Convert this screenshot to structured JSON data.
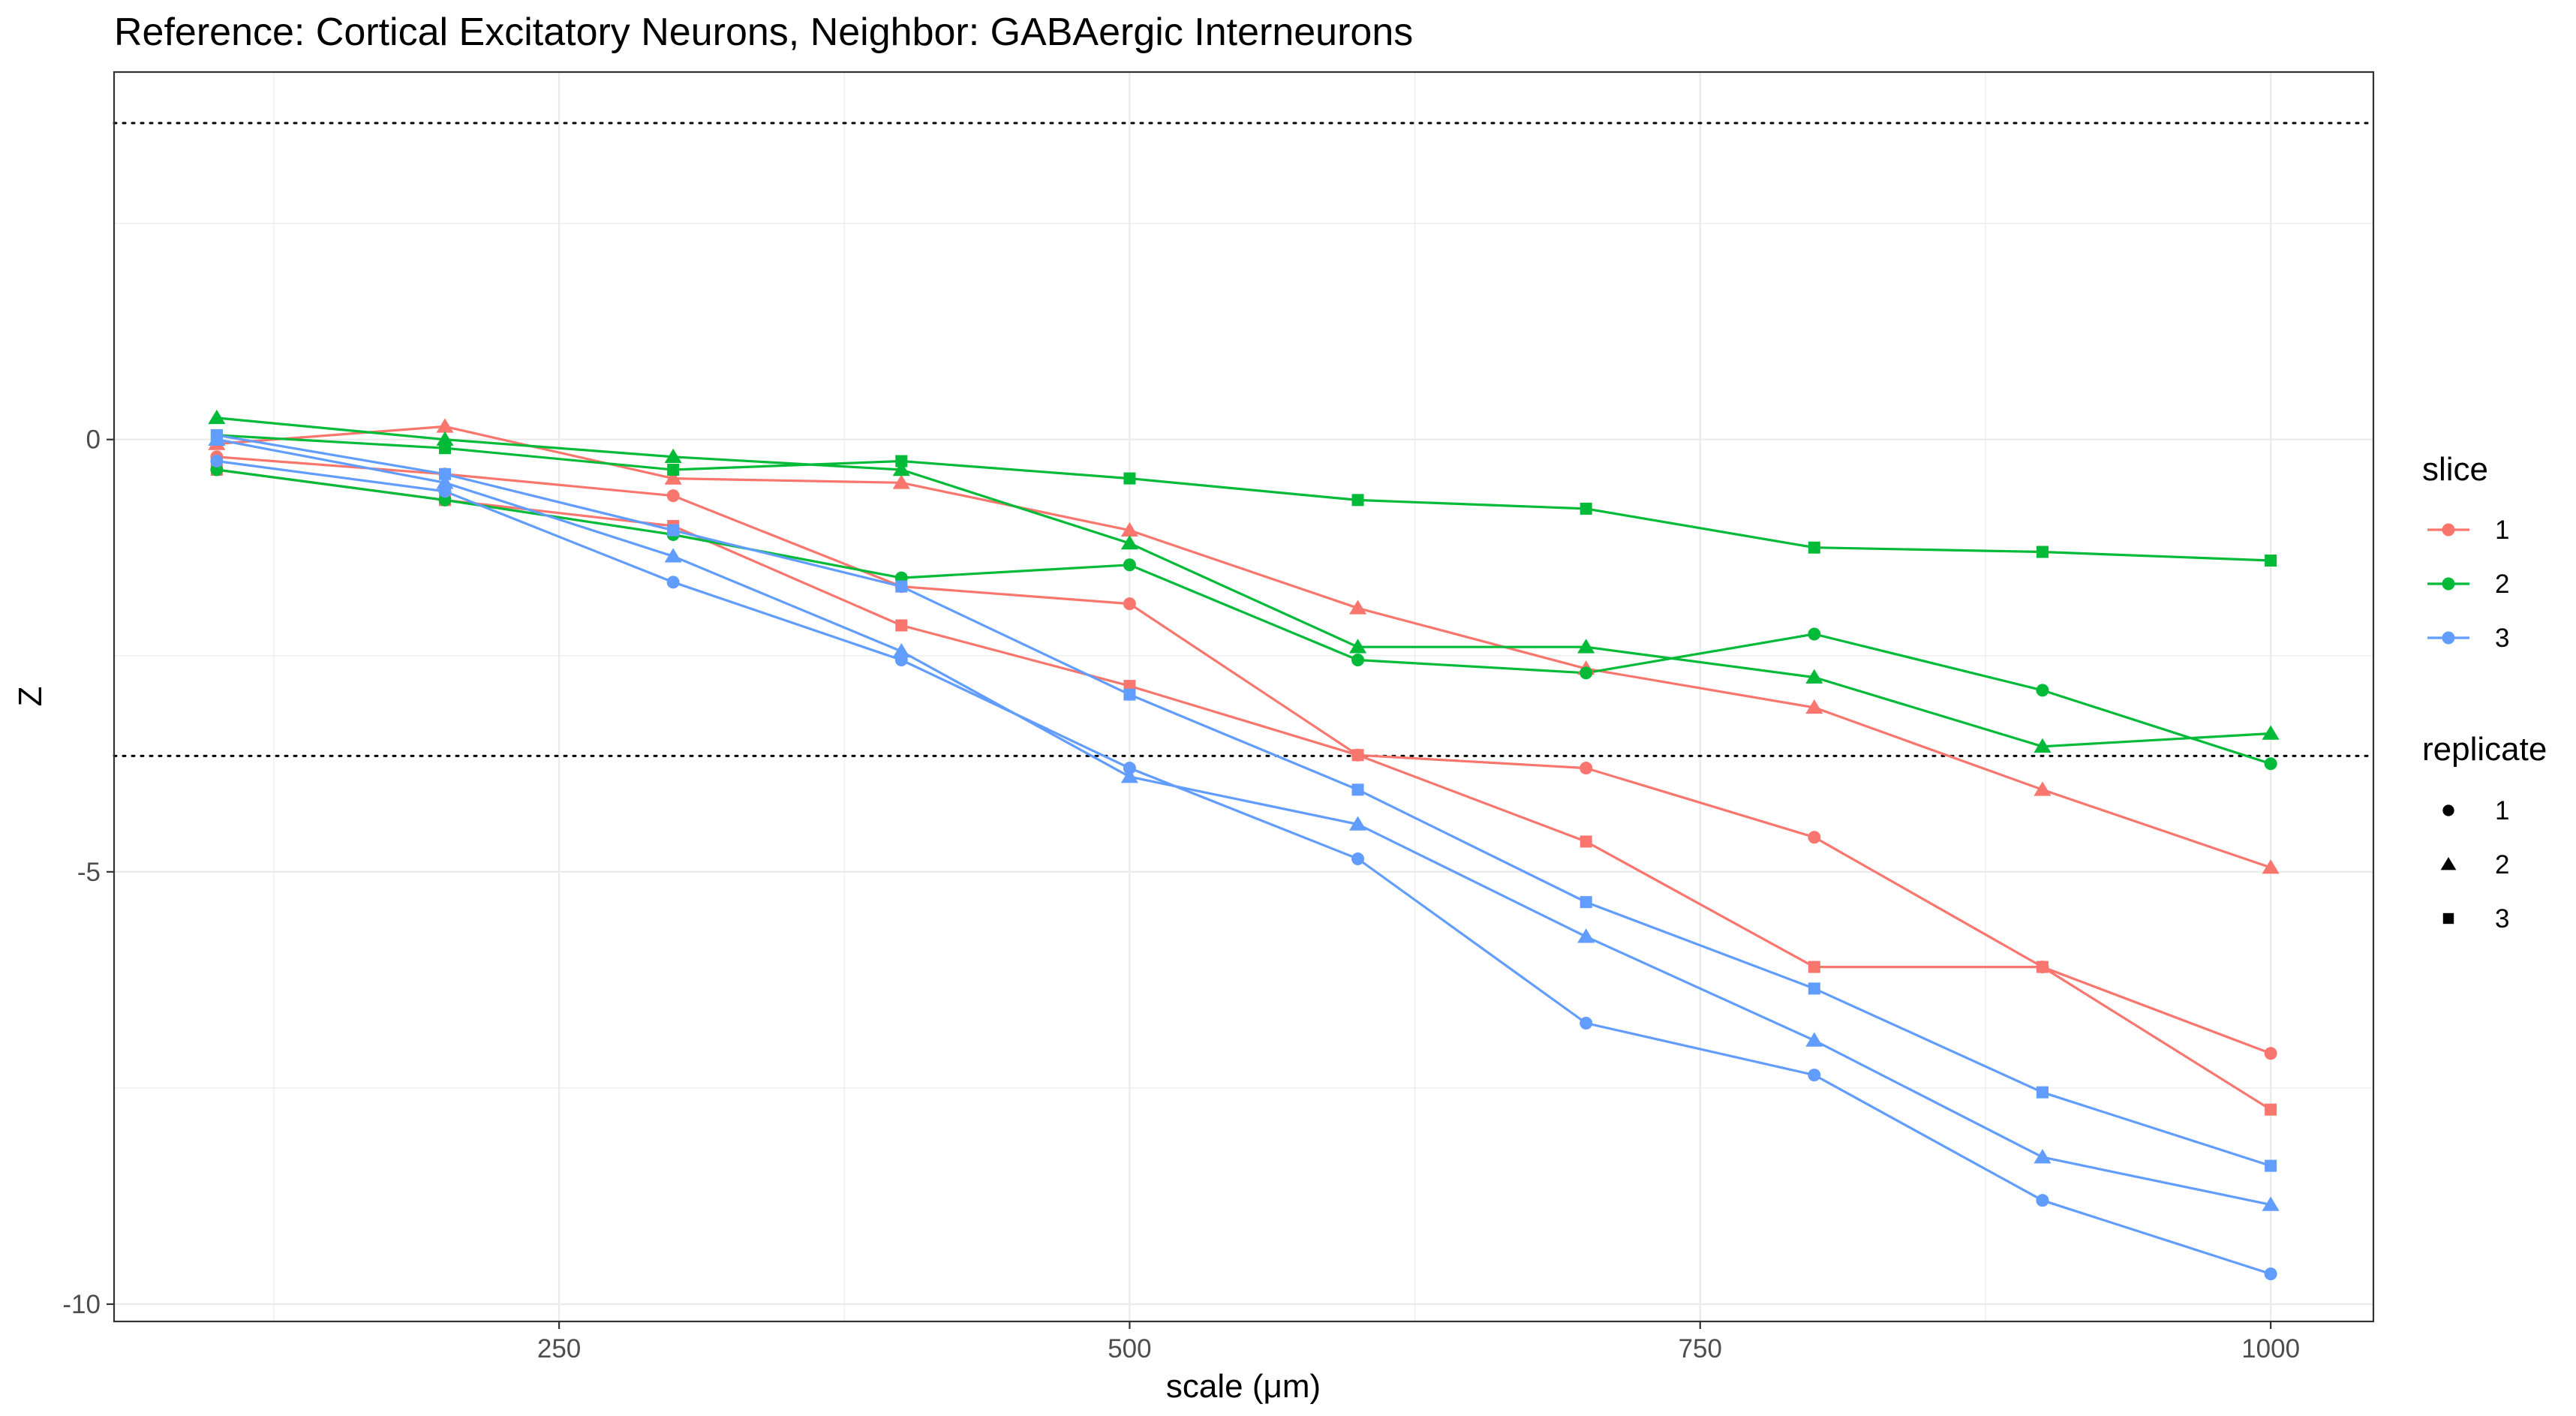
{
  "chart_data": {
    "type": "line",
    "title": "Reference: Cortical Excitatory Neurons, Neighbor: GABAergic Interneurons",
    "xlabel": "scale (μm)",
    "ylabel": "Z",
    "x": [
      100,
      200,
      300,
      400,
      500,
      600,
      700,
      800,
      900,
      1000
    ],
    "xlim": [
      55,
      1045
    ],
    "ylim": [
      -10.2,
      4.25
    ],
    "xticks": [
      250,
      500,
      750,
      1000
    ],
    "yticks": [
      0,
      -5,
      -10
    ],
    "grid": true,
    "reference_lines": [
      3.66,
      -3.66
    ],
    "legend_position": "right",
    "legend": {
      "color_title": "slice",
      "shape_title": "replicate",
      "slices": [
        {
          "label": "1",
          "color": "#F8766D"
        },
        {
          "label": "2",
          "color": "#00BA38"
        },
        {
          "label": "3",
          "color": "#619CFF"
        }
      ],
      "replicates": [
        {
          "label": "1",
          "shape": "circle"
        },
        {
          "label": "2",
          "shape": "triangle"
        },
        {
          "label": "3",
          "shape": "square"
        }
      ]
    },
    "series": [
      {
        "slice": "1",
        "replicate": "1",
        "values": [
          -0.2,
          -0.4,
          -0.65,
          -1.7,
          -1.9,
          -3.65,
          -3.8,
          -4.6,
          -6.1,
          -7.1
        ]
      },
      {
        "slice": "1",
        "replicate": "2",
        "values": [
          -0.05,
          0.15,
          -0.45,
          -0.5,
          -1.05,
          -1.95,
          -2.65,
          -3.1,
          -4.05,
          -4.95
        ]
      },
      {
        "slice": "1",
        "replicate": "3",
        "values": [
          -0.35,
          -0.7,
          -1.0,
          -2.15,
          -2.85,
          -3.65,
          -4.65,
          -6.1,
          -6.1,
          -7.75
        ]
      },
      {
        "slice": "2",
        "replicate": "1",
        "values": [
          -0.35,
          -0.7,
          -1.1,
          -1.6,
          -1.45,
          -2.55,
          -2.7,
          -2.25,
          -2.9,
          -3.75
        ]
      },
      {
        "slice": "2",
        "replicate": "2",
        "values": [
          0.25,
          0.0,
          -0.2,
          -0.35,
          -1.2,
          -2.4,
          -2.4,
          -2.75,
          -3.55,
          -3.4
        ]
      },
      {
        "slice": "2",
        "replicate": "3",
        "values": [
          0.05,
          -0.1,
          -0.35,
          -0.25,
          -0.45,
          -0.7,
          -0.8,
          -1.25,
          -1.3,
          -1.4
        ]
      },
      {
        "slice": "3",
        "replicate": "1",
        "values": [
          -0.25,
          -0.6,
          -1.65,
          -2.55,
          -3.8,
          -4.85,
          -6.75,
          -7.35,
          -8.8,
          -9.65
        ]
      },
      {
        "slice": "3",
        "replicate": "2",
        "values": [
          0.0,
          -0.5,
          -1.35,
          -2.45,
          -3.9,
          -4.45,
          -5.75,
          -6.95,
          -8.3,
          -8.85
        ]
      },
      {
        "slice": "3",
        "replicate": "3",
        "values": [
          0.05,
          -0.4,
          -1.05,
          -1.7,
          -2.95,
          -4.05,
          -5.35,
          -6.35,
          -7.55,
          -8.4
        ]
      }
    ]
  }
}
